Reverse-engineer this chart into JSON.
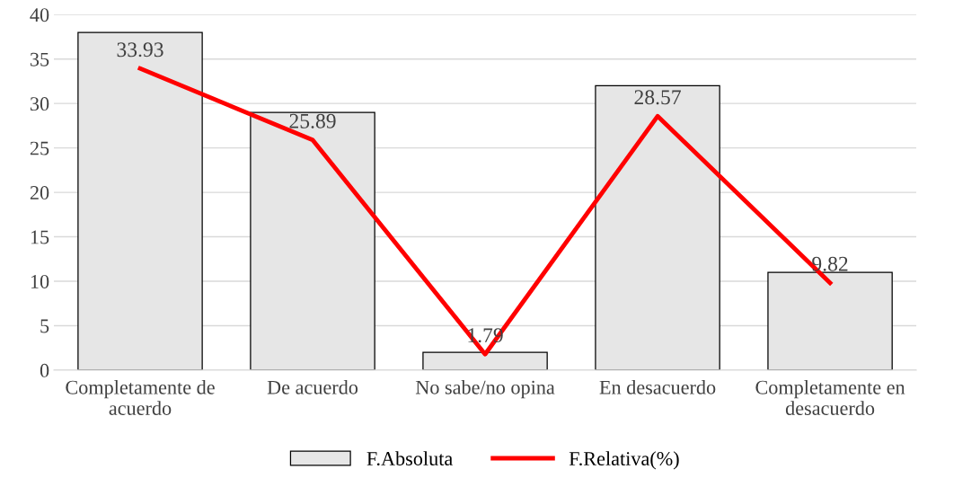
{
  "chart_data": {
    "type": "bar",
    "categories": [
      "Completamente de acuerdo",
      "De acuerdo",
      "No sabe/no opina",
      "En desacuerdo",
      "Completamente en desacuerdo"
    ],
    "series": [
      {
        "name": "F.Absoluta",
        "color": "#e6e6e6",
        "values": [
          38,
          29,
          2,
          32,
          11
        ]
      },
      {
        "name": "F.Relativa(%)",
        "type": "line",
        "color": "#ff0000",
        "values": [
          33.93,
          25.89,
          1.79,
          28.57,
          9.82
        ],
        "value_labels": [
          "33.93",
          "25.89",
          "1.79",
          "28.57",
          "9.82"
        ]
      }
    ],
    "ylim": [
      0,
      40
    ],
    "yticks": [
      0,
      5,
      10,
      15,
      20,
      25,
      30,
      35,
      40
    ],
    "grid": "y",
    "legend": "bottom",
    "marker": "none",
    "line_style": "solid"
  }
}
